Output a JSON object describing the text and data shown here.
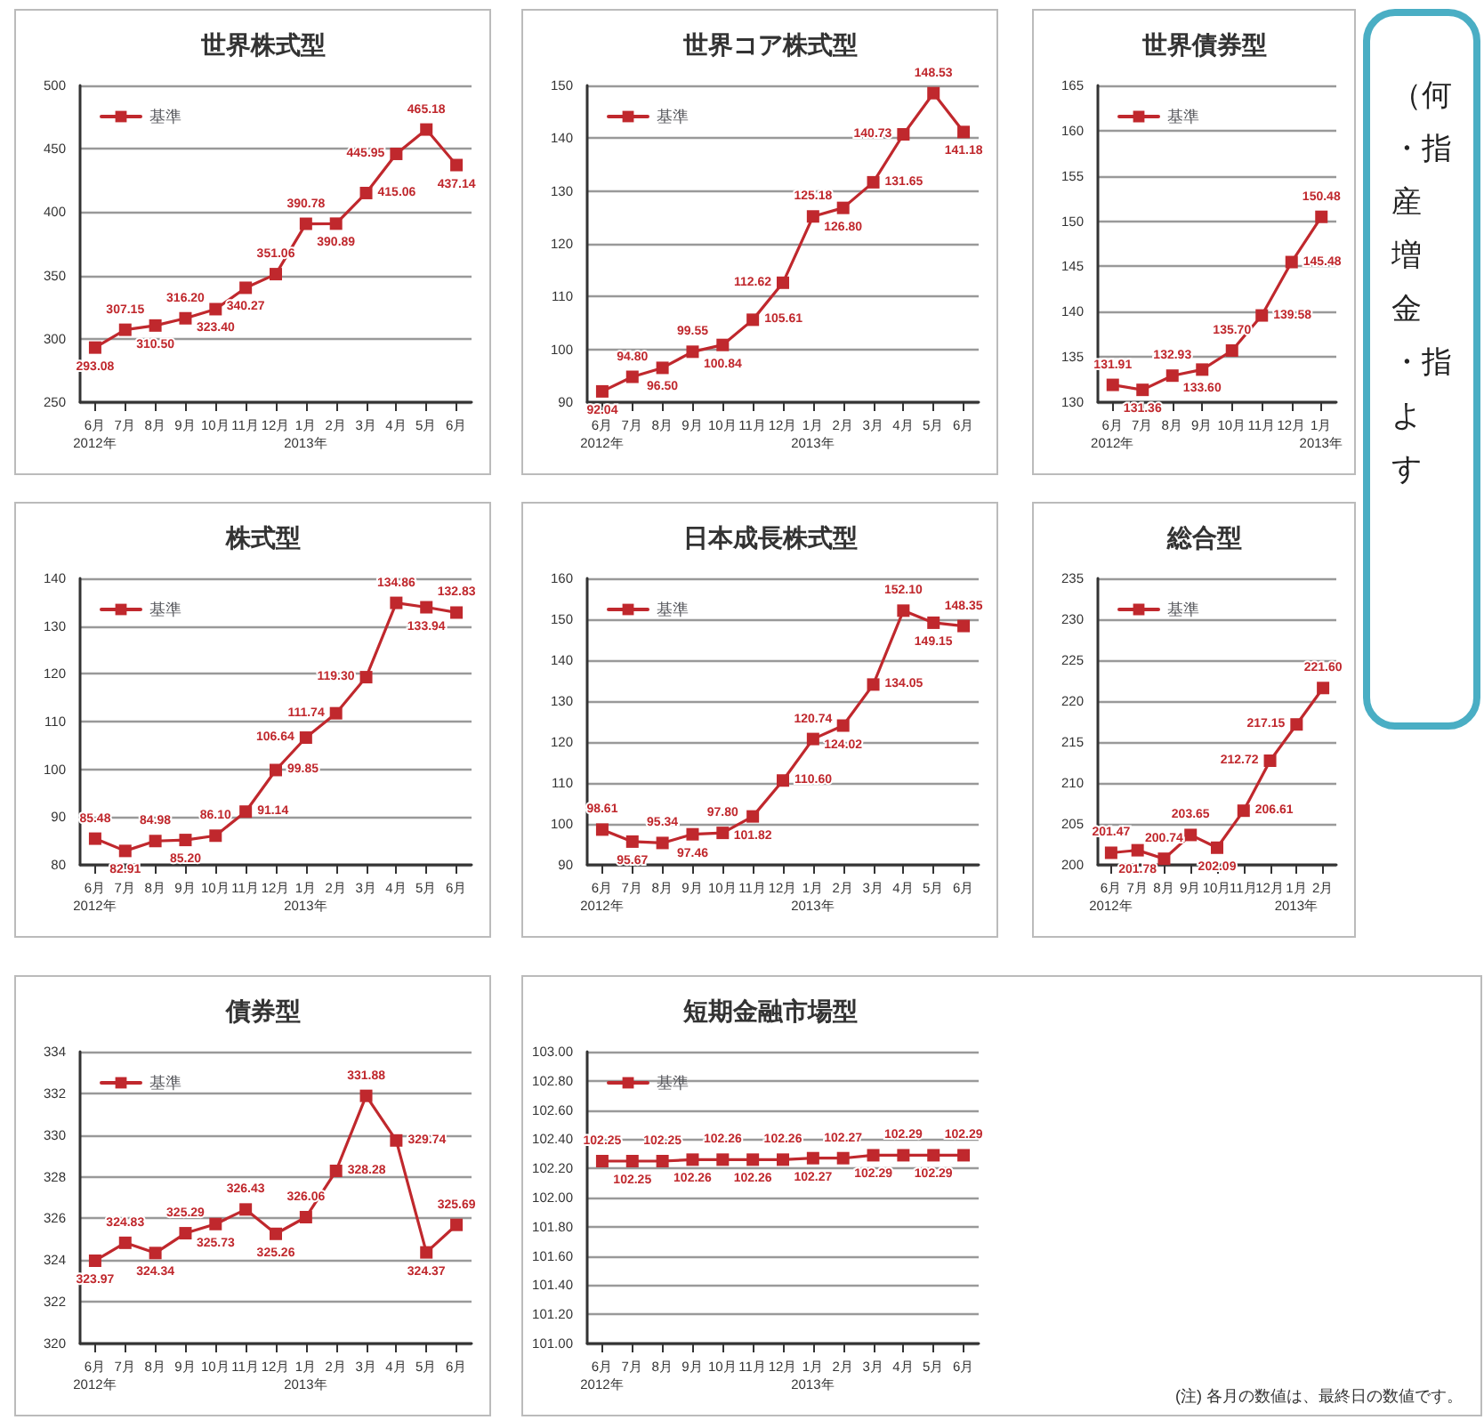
{
  "chart_data": [
    {
      "type": "line",
      "title": "世界株式型",
      "categories": [
        "6月\n2012年",
        "7月",
        "8月",
        "9月",
        "10月",
        "11月",
        "12月",
        "1月\n2013年",
        "2月",
        "3月",
        "4月",
        "5月",
        "6月"
      ],
      "series": [
        {
          "name": "基準",
          "color": "#c0282d",
          "values": [
            293.08,
            307.15,
            310.5,
            316.2,
            323.4,
            340.27,
            351.06,
            390.78,
            390.89,
            415.06,
            445.95,
            465.18,
            437.14
          ],
          "value_labels": [
            "293.08",
            "307.15",
            "310.50",
            "316.20",
            "323.40",
            "340.27",
            "351.06",
            "390.78",
            "390.89",
            "415.06",
            "445.95",
            "465.18",
            "437.14"
          ]
        }
      ],
      "ylim": [
        250,
        500
      ],
      "yticks": [
        250,
        300,
        350,
        400,
        450,
        500
      ],
      "grid": "y",
      "legend": "top left",
      "marker": "square"
    },
    {
      "type": "line",
      "title": "世界コア株式型",
      "categories": [
        "6月\n2012年",
        "7月",
        "8月",
        "9月",
        "10月",
        "11月",
        "12月",
        "1月\n2013年",
        "2月",
        "3月",
        "4月",
        "5月",
        "6月"
      ],
      "series": [
        {
          "name": "基準",
          "color": "#c0282d",
          "values": [
            92.04,
            94.8,
            96.5,
            99.55,
            100.84,
            105.61,
            112.62,
            125.18,
            126.8,
            131.65,
            140.73,
            148.53,
            141.18
          ],
          "value_labels": [
            "92.04",
            "94.80",
            "96.50",
            "99.55",
            "100.84",
            "105.61",
            "112.62",
            "125.18",
            "126.80",
            "131.65",
            "140.73",
            "148.53",
            "141.18"
          ]
        }
      ],
      "ylim": [
        90,
        150
      ],
      "yticks": [
        90,
        100,
        110,
        120,
        130,
        140,
        150
      ],
      "grid": "y",
      "legend": "top left",
      "marker": "square"
    },
    {
      "type": "line",
      "title": "世界債券型",
      "categories": [
        "6月\n2012年",
        "7月",
        "8月",
        "9月",
        "10月",
        "11月",
        "12月",
        "1月\n2013年"
      ],
      "series": [
        {
          "name": "基準",
          "color": "#c0282d",
          "values": [
            131.91,
            131.36,
            132.93,
            133.6,
            135.7,
            139.58,
            145.48,
            150.48
          ],
          "value_labels": [
            "131.91",
            "131.36",
            "132.93",
            "133.60",
            "135.70",
            "139.58",
            "145.48",
            "150.48"
          ]
        }
      ],
      "ylim": [
        130,
        165
      ],
      "yticks": [
        130,
        135,
        140,
        145,
        150,
        155,
        160,
        165
      ],
      "grid": "y",
      "legend": "top left",
      "marker": "square"
    },
    {
      "type": "other",
      "annotations": [
        "（何",
        "・指",
        "産",
        "増",
        "金",
        "・指",
        "よ",
        "す"
      ]
    },
    {
      "type": "line",
      "title": "株式型",
      "categories": [
        "6月\n2012年",
        "7月",
        "8月",
        "9月",
        "10月",
        "11月",
        "12月",
        "1月\n2013年",
        "2月",
        "3月",
        "4月",
        "5月",
        "6月"
      ],
      "series": [
        {
          "name": "基準",
          "color": "#c0282d",
          "values": [
            85.48,
            82.91,
            84.98,
            85.2,
            86.1,
            91.14,
            99.85,
            106.64,
            111.74,
            119.3,
            134.86,
            133.94,
            132.83
          ],
          "value_labels": [
            "85.48",
            "82.91",
            "84.98",
            "85.20",
            "86.10",
            "91.14",
            "99.85",
            "106.64",
            "111.74",
            "119.30",
            "134.86",
            "133.94",
            "132.83"
          ]
        }
      ],
      "ylim": [
        80,
        140
      ],
      "yticks": [
        80,
        90,
        100,
        110,
        120,
        130,
        140
      ],
      "grid": "y",
      "legend": "top left",
      "marker": "square"
    },
    {
      "type": "line",
      "title": "日本成長株式型",
      "categories": [
        "6月\n2012年",
        "7月",
        "8月",
        "9月",
        "10月",
        "11月",
        "12月",
        "1月\n2013年",
        "2月",
        "3月",
        "4月",
        "5月",
        "6月"
      ],
      "series": [
        {
          "name": "基準",
          "color": "#c0282d",
          "values": [
            98.61,
            95.67,
            95.34,
            97.46,
            97.8,
            101.82,
            110.6,
            120.74,
            124.02,
            134.05,
            152.1,
            149.15,
            148.35
          ],
          "value_labels": [
            "98.61",
            "95.67",
            "95.34",
            "97.46",
            "97.80",
            "101.82",
            "110.60",
            "120.74",
            "124.02",
            "134.05",
            "152.10",
            "149.15",
            "148.35"
          ]
        }
      ],
      "ylim": [
        90,
        160
      ],
      "yticks": [
        90,
        100,
        110,
        120,
        130,
        140,
        150,
        160
      ],
      "grid": "y",
      "legend": "top left",
      "marker": "square"
    },
    {
      "type": "line",
      "title": "総合型",
      "categories": [
        "6月\n2012年",
        "7月",
        "8月",
        "9月",
        "10月",
        "11月",
        "12月",
        "1月\n2013年",
        "2月"
      ],
      "series": [
        {
          "name": "基準",
          "color": "#c0282d",
          "values": [
            201.47,
            201.78,
            200.74,
            203.65,
            202.09,
            206.61,
            212.72,
            217.15,
            221.6
          ],
          "value_labels": [
            "201.47",
            "201.78",
            "200.74",
            "203.65",
            "202.09",
            "206.61",
            "212.72",
            "217.15",
            "221.60"
          ]
        }
      ],
      "ylim": [
        200,
        235
      ],
      "yticks": [
        200,
        205,
        210,
        215,
        220,
        225,
        230,
        235
      ],
      "grid": "y",
      "legend": "top left",
      "marker": "square"
    },
    {
      "type": "line",
      "title": "債券型",
      "categories": [
        "6月\n2012年",
        "7月",
        "8月",
        "9月",
        "10月",
        "11月",
        "12月",
        "1月\n2013年",
        "2月",
        "3月",
        "4月",
        "5月",
        "6月"
      ],
      "series": [
        {
          "name": "基準",
          "color": "#c0282d",
          "values": [
            323.97,
            324.83,
            324.34,
            325.29,
            325.73,
            326.43,
            325.26,
            326.06,
            328.28,
            331.88,
            329.74,
            324.37,
            325.69
          ],
          "value_labels": [
            "323.97",
            "324.83",
            "324.34",
            "325.29",
            "325.73",
            "326.43",
            "325.26",
            "326.06",
            "328.28",
            "331.88",
            "329.74",
            "324.37",
            "325.69"
          ]
        }
      ],
      "ylim": [
        320,
        334
      ],
      "yticks": [
        320,
        322,
        324,
        326,
        328,
        330,
        332,
        334
      ],
      "grid": "y",
      "legend": "top left",
      "marker": "square"
    },
    {
      "type": "line",
      "title": "短期金融市場型",
      "categories": [
        "6月\n2012年",
        "7月",
        "8月",
        "9月",
        "10月",
        "11月",
        "12月",
        "1月\n2013年",
        "2月",
        "3月",
        "4月",
        "5月",
        "6月"
      ],
      "series": [
        {
          "name": "基準",
          "color": "#c0282d",
          "values": [
            102.25,
            102.25,
            102.25,
            102.26,
            102.26,
            102.26,
            102.26,
            102.27,
            102.27,
            102.29,
            102.29,
            102.29,
            102.29
          ],
          "value_labels": [
            "102.25",
            "102.25",
            "102.25",
            "102.26",
            "102.26",
            "102.26",
            "102.26",
            "102.27",
            "102.27",
            "102.29",
            "102.29",
            "102.29",
            "102.29"
          ]
        }
      ],
      "ylim": [
        101,
        103
      ],
      "yticks": [
        {
          "value": 101,
          "label": "101.00"
        },
        {
          "value": 101.2,
          "label": "101.20"
        },
        {
          "value": 101.4,
          "label": "101.40"
        },
        {
          "value": 101.6,
          "label": "101.60"
        },
        {
          "value": 101.8,
          "label": "101.80"
        },
        {
          "value": 102,
          "label": "102.00"
        },
        {
          "value": 102.2,
          "label": "102.20"
        },
        {
          "value": 102.4,
          "label": "102.40"
        },
        {
          "value": 102.6,
          "label": "102.60"
        },
        {
          "value": 102.8,
          "label": "102.80"
        },
        {
          "value": 103,
          "label": "103.00"
        }
      ],
      "grid": "y",
      "legend": "top left",
      "marker": "square",
      "annotations": [
        "(注) 各月の数値は、最終日の数値です。"
      ]
    }
  ]
}
